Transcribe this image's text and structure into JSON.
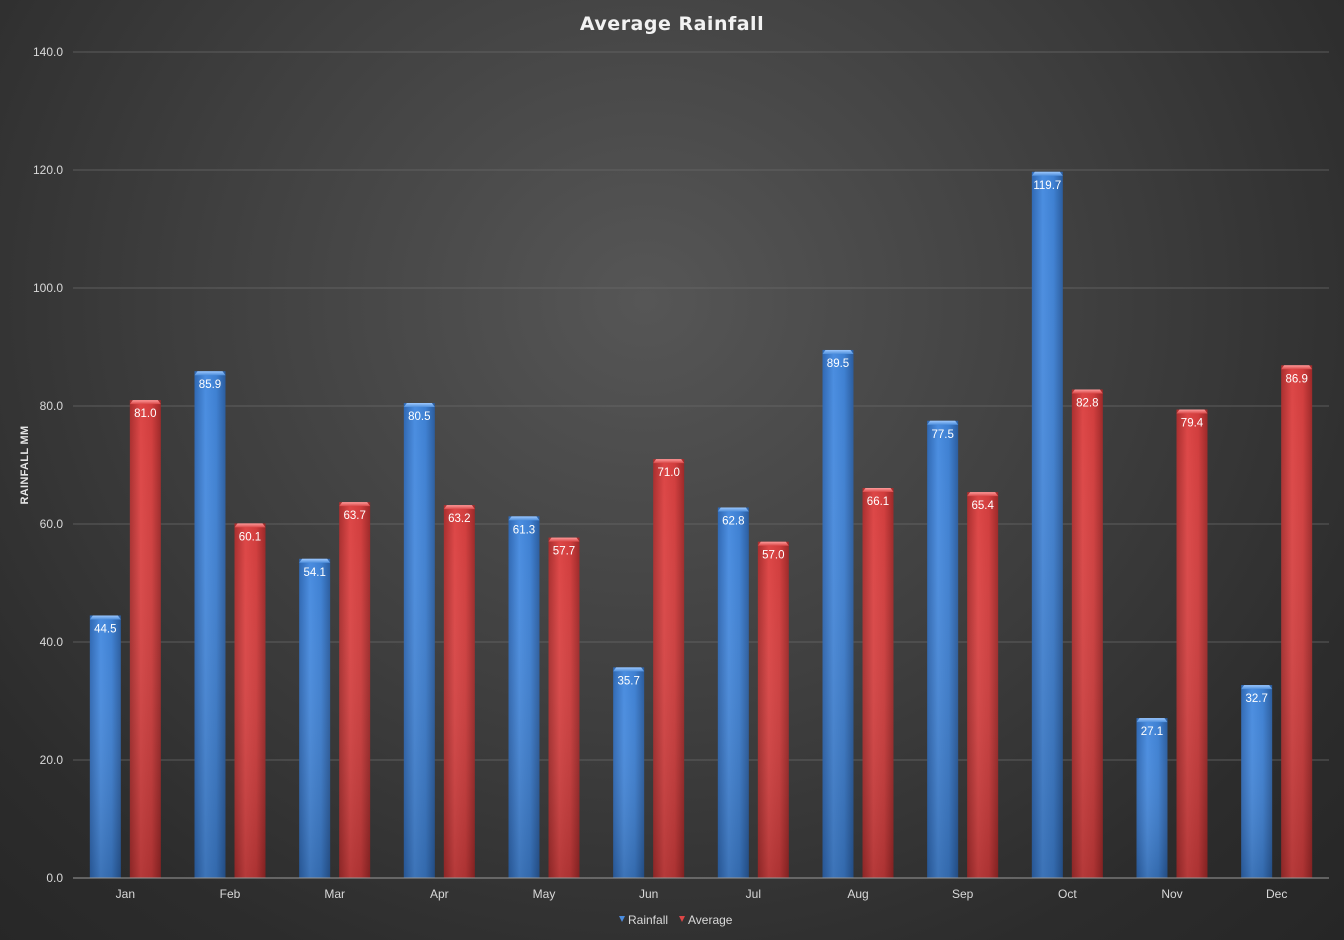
{
  "chart_data": {
    "type": "bar",
    "title": "Average Rainfall",
    "xlabel": "",
    "ylabel": "RAINFALL MM",
    "ylim": [
      0,
      140
    ],
    "ytick_step": 20,
    "ytick_labels": [
      "0.0",
      "20.0",
      "40.0",
      "60.0",
      "80.0",
      "100.0",
      "120.0",
      "140.0"
    ],
    "grid": true,
    "legend_position": "bottom",
    "categories": [
      "Jan",
      "Feb",
      "Mar",
      "Apr",
      "May",
      "Jun",
      "Jul",
      "Aug",
      "Sep",
      "Oct",
      "Nov",
      "Dec"
    ],
    "series": [
      {
        "name": "Rainfall",
        "color": "#3f82d4",
        "values": [
          44.5,
          85.9,
          54.1,
          80.5,
          61.3,
          35.7,
          62.8,
          89.5,
          77.5,
          119.7,
          27.1,
          32.7
        ],
        "labels": [
          "44.5",
          "85.9",
          "54.1",
          "80.5",
          "61.3",
          "35.7",
          "62.8",
          "89.5",
          "77.5",
          "119.7",
          "27.1",
          "32.7"
        ]
      },
      {
        "name": "Average",
        "color": "#d23f3f",
        "values": [
          81.0,
          60.1,
          63.7,
          63.2,
          57.7,
          71.0,
          57.0,
          66.1,
          65.4,
          82.8,
          79.4,
          86.9
        ],
        "labels": [
          "81.0",
          "60.1",
          "63.7",
          "63.2",
          "57.7",
          "71.0",
          "57.0",
          "66.1",
          "65.4",
          "82.8",
          "79.4",
          "86.9"
        ]
      }
    ]
  }
}
